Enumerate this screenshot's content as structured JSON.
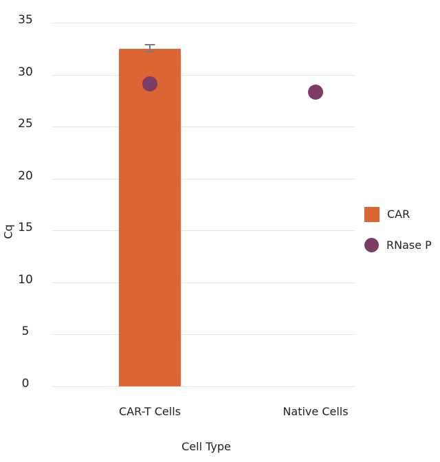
{
  "chart_data": {
    "type": "bar",
    "title": "",
    "xlabel": "Cell Type",
    "ylabel": "Cq",
    "categories": [
      "CAR-T Cells",
      "Native Cells"
    ],
    "series": [
      {
        "name": "CAR",
        "kind": "bar",
        "marker": "square",
        "color": "#dd6433",
        "values": [
          32.5,
          null
        ],
        "error_bars": [
          {
            "low": 32.2,
            "high": 32.9
          },
          null
        ]
      },
      {
        "name": "RNase P",
        "kind": "scatter",
        "marker": "circle",
        "color": "#7c3c67",
        "values": [
          29.1,
          28.3
        ],
        "error_bars": [
          null,
          null
        ]
      }
    ],
    "ylim": [
      0,
      35
    ],
    "yticks": [
      0,
      5,
      10,
      15,
      20,
      25,
      30,
      35
    ],
    "grid": true,
    "legend_position": "right",
    "colors": {
      "error_bar": "#7a7a7a",
      "gridline": "#e3e3e3",
      "text": "#212121",
      "background": "#ffffff"
    }
  }
}
